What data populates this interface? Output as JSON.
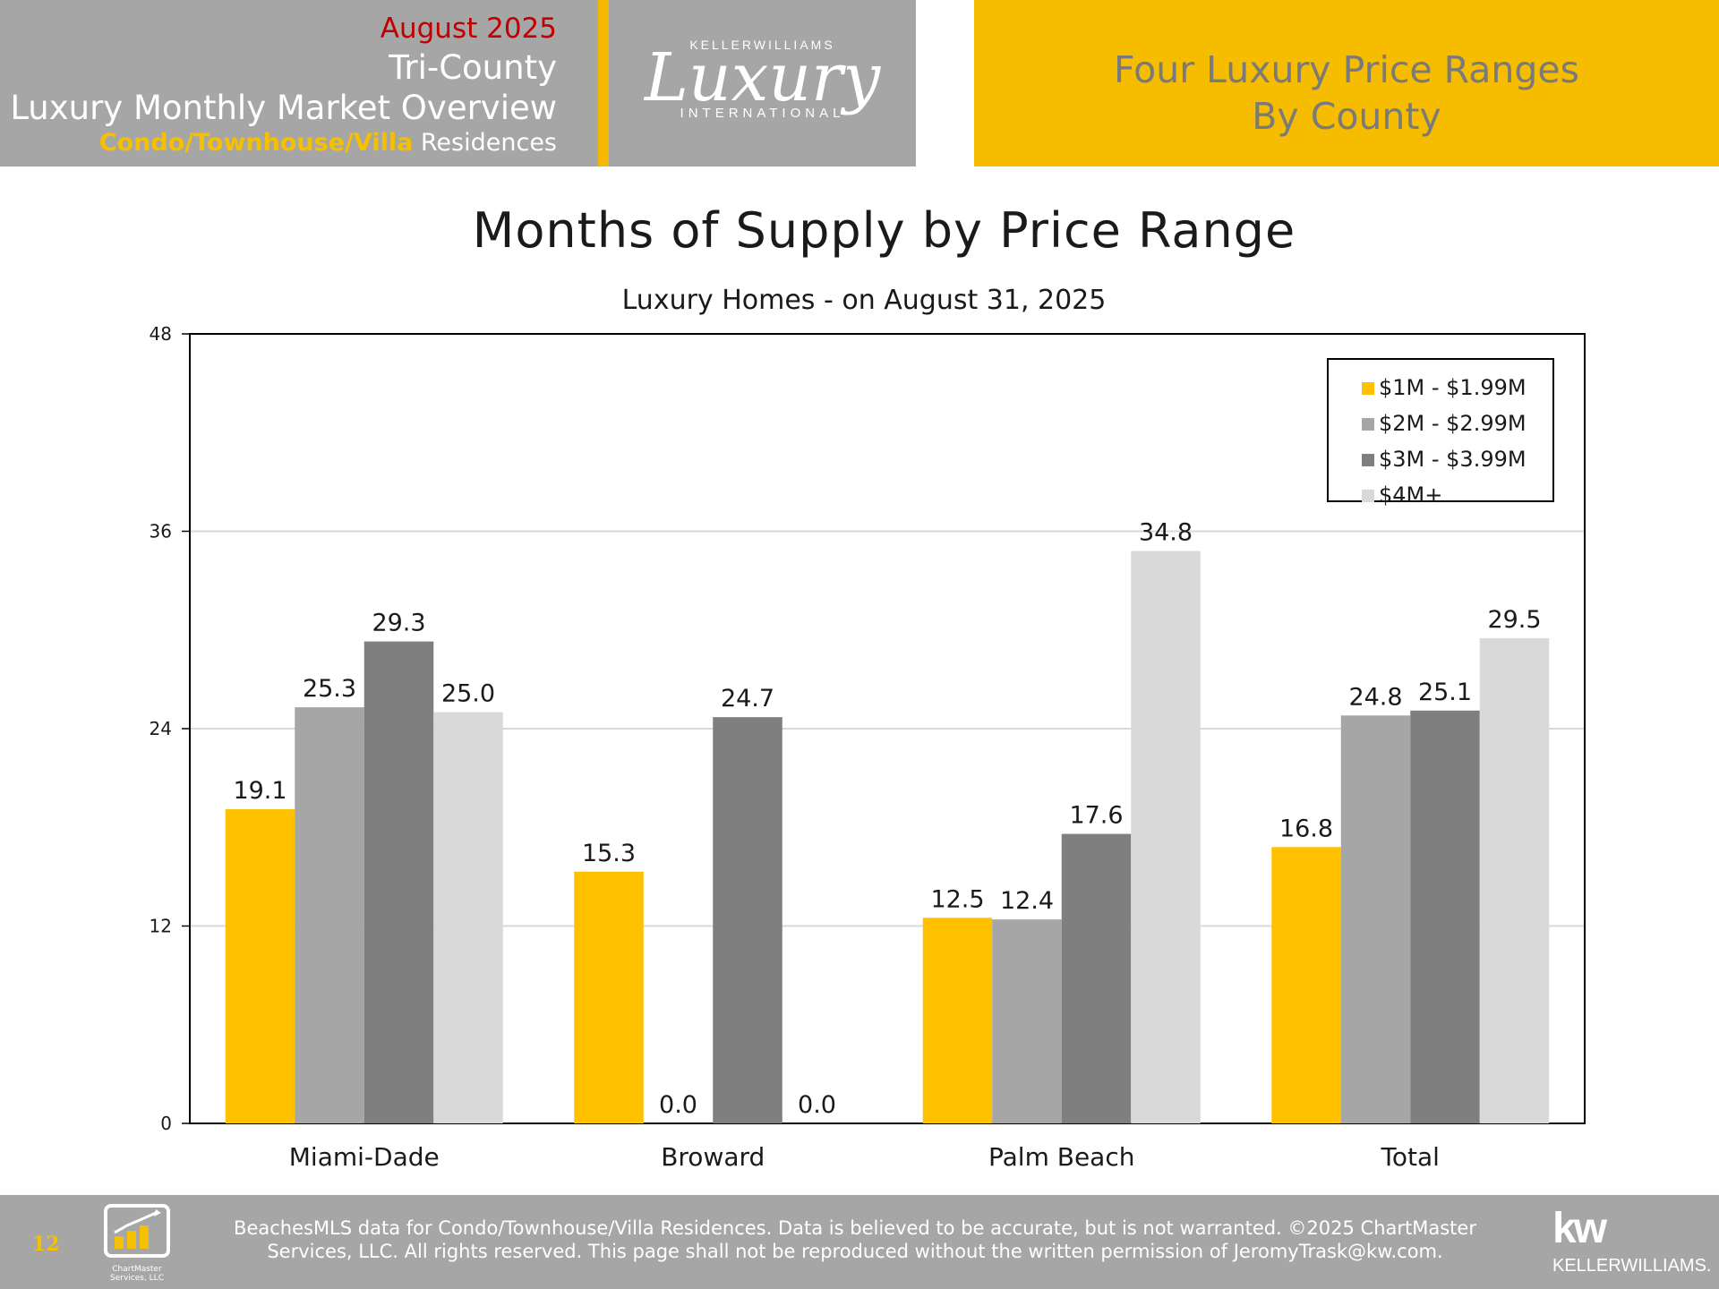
{
  "header": {
    "month": "August 2025",
    "region": "Tri-County",
    "report_title": "Luxury Monthly Market Overview",
    "property_type_highlight": "Condo/Townhouse/Villa",
    "property_type_suffix": " Residences",
    "logo_top": "KELLERWILLIAMS",
    "logo_main": "Luxury",
    "logo_bottom": "INTERNATIONAL",
    "section_line1": "Four Luxury Price Ranges",
    "section_line2": "By County"
  },
  "chart_data": {
    "type": "bar",
    "title": "Months of Supply by Price Range",
    "subtitle": "Luxury Homes - on August 31, 2025",
    "categories": [
      "Miami-Dade",
      "Broward",
      "Palm Beach",
      "Total"
    ],
    "series": [
      {
        "name": "$1M - $1.99M",
        "color": "#ffc000",
        "values": [
          19.1,
          15.3,
          12.5,
          16.8
        ]
      },
      {
        "name": "$2M - $2.99M",
        "color": "#a6a6a6",
        "values": [
          25.3,
          0.0,
          12.4,
          24.8
        ]
      },
      {
        "name": "$3M - $3.99M",
        "color": "#7f7f7f",
        "values": [
          29.3,
          24.7,
          17.6,
          25.1
        ]
      },
      {
        "name": "$4M+",
        "color": "#d9d9d9",
        "values": [
          25.0,
          0.0,
          34.8,
          29.5
        ]
      }
    ],
    "yticks": [
      0,
      12,
      24,
      36,
      48
    ],
    "ylim": [
      0,
      48
    ],
    "grid": true,
    "legend_position": "top-right"
  },
  "footer": {
    "page_number": "12",
    "chartmaster_label_line1": "ChartMaster",
    "chartmaster_label_line2": "Services, LLC",
    "disclaimer_line1": "BeachesMLS data for Condo/Townhouse/Villa Residences.  Data is believed to be accurate, but is not warranted.   ©2025  ChartMaster",
    "disclaimer_line2": "Services, LLC.  All rights reserved. This page shall not be reproduced without the written permission of JeromyTrask@kw.com.",
    "kw_mark": "kw",
    "kw_word": "KELLERWILLIAMS."
  }
}
